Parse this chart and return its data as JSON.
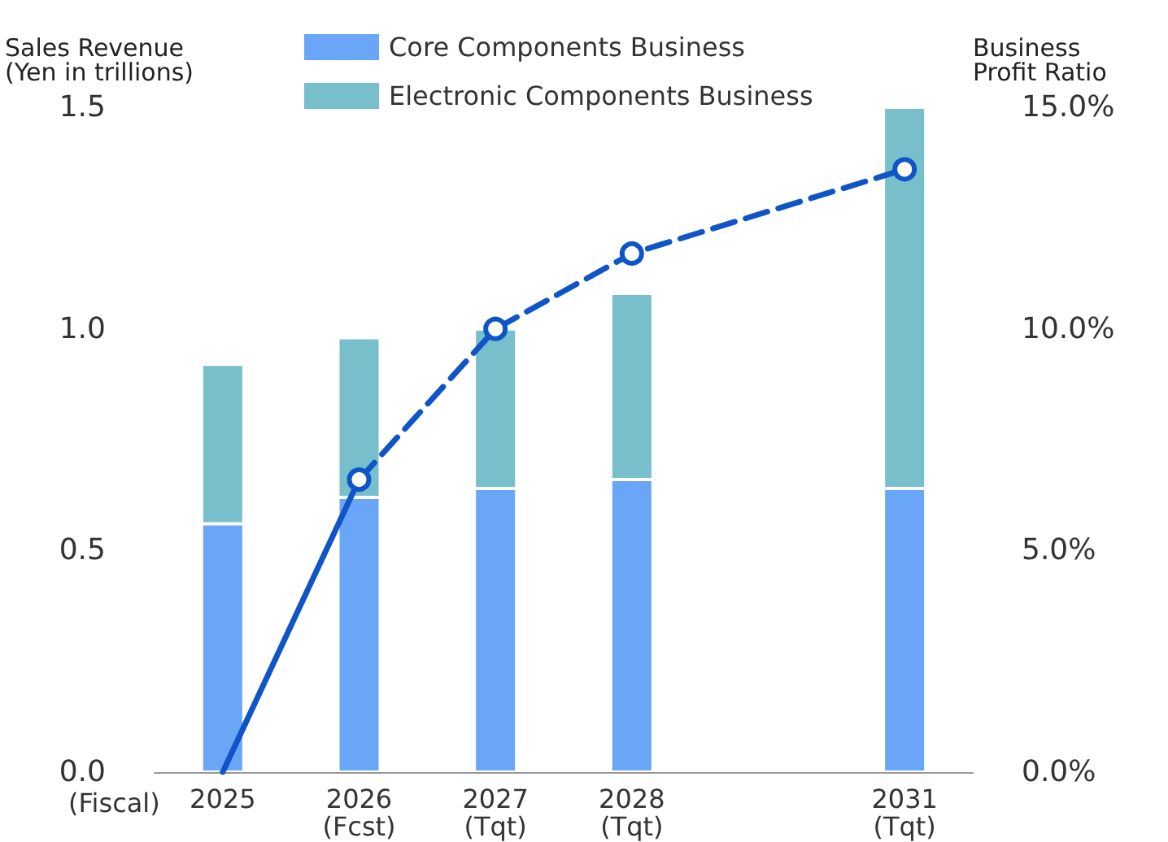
{
  "chart_data": {
    "type": "bar",
    "stacked": true,
    "categories": [
      "2025",
      "2026\n(Fcst)",
      "2027\n(Tqt)",
      "2028\n(Tqt)",
      null,
      "2031\n(Tqt)"
    ],
    "series": [
      {
        "name": "Core Components Business",
        "color": "#6aa6f8",
        "values": [
          0.56,
          0.62,
          0.64,
          0.66,
          null,
          0.64
        ]
      },
      {
        "name": "Electronic Components Business",
        "color": "#78bfcc",
        "values": [
          0.36,
          0.36,
          0.36,
          0.42,
          null,
          0.86
        ]
      },
      {
        "type": "line",
        "axis": "y2",
        "color": "#1055c8",
        "line_style": "solid",
        "marker": "none",
        "values": [
          0,
          6.6,
          null,
          null,
          null,
          null
        ]
      },
      {
        "type": "line",
        "axis": "y2",
        "color": "#1055c8",
        "line_style": "dashed",
        "marker": "circle",
        "values": [
          null,
          6.6,
          10.0,
          11.7,
          null,
          13.6
        ]
      }
    ],
    "ylabel": "Sales Revenue\n(Yen in trillions)",
    "y2label": "Business\nProfit Ratio",
    "ylim": [
      0,
      1.5
    ],
    "yticks": [
      {
        "value": 0,
        "label": "0.0"
      },
      {
        "value": 0.5,
        "label": "0.5"
      },
      {
        "value": 1,
        "label": "1.0"
      },
      {
        "value": 1.5,
        "label": "1.5"
      }
    ],
    "y2lim": [
      0,
      15
    ],
    "y2ticks": [
      {
        "value": 0,
        "label": "0.0%"
      },
      {
        "value": 5,
        "label": "5.0%"
      },
      {
        "value": 10,
        "label": "10.0%"
      },
      {
        "value": 15,
        "label": "15.0%"
      }
    ],
    "annotations": [
      "(Fiscal)"
    ],
    "legend": "top",
    "grid": false
  }
}
